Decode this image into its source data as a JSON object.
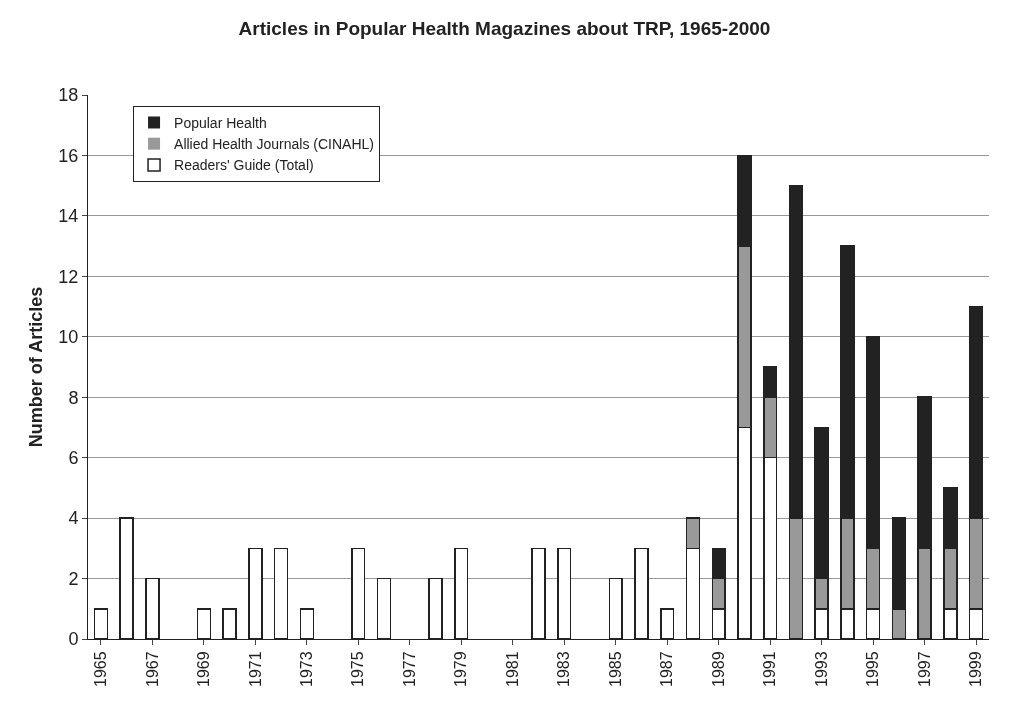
{
  "chart_data": {
    "type": "bar",
    "title": "Articles in Popular Health Magazines about TRP, 1965-2000",
    "ylabel": "Number of Articles",
    "categories": [
      "1965",
      null,
      "1967",
      null,
      "1969",
      null,
      "1971",
      null,
      "1973",
      null,
      "1975",
      null,
      "1977",
      null,
      "1979",
      null,
      "1981",
      null,
      "1983",
      null,
      "1985",
      null,
      "1987",
      null,
      "1989",
      null,
      "1991",
      null,
      "1993",
      null,
      "1995",
      null,
      "1997",
      null,
      "1999"
    ],
    "stacked": true,
    "series": [
      {
        "name": "Readers' Guide (Total)",
        "color": "#ffffff",
        "values": [
          1,
          4,
          2,
          0,
          1,
          1,
          3,
          3,
          1,
          0,
          3,
          2,
          0,
          2,
          3,
          0,
          0,
          3,
          3,
          0,
          2,
          3,
          1,
          3,
          1,
          7,
          6,
          0,
          1,
          1,
          1,
          0,
          0,
          1,
          1
        ]
      },
      {
        "name": "Allied Health Journals (CINAHL)",
        "color": "#999999",
        "values": [
          0,
          0,
          0,
          0,
          0,
          0,
          0,
          0,
          0,
          0,
          0,
          0,
          0,
          0,
          0,
          0,
          0,
          0,
          0,
          0,
          0,
          0,
          0,
          1,
          1,
          6,
          2,
          4,
          1,
          3,
          2,
          1,
          3,
          2,
          3
        ]
      },
      {
        "name": "Popular Health",
        "color": "#222222",
        "values": [
          0,
          0,
          0,
          0,
          0,
          0,
          0,
          0,
          0,
          0,
          0,
          0,
          0,
          0,
          0,
          0,
          0,
          0,
          0,
          0,
          0,
          0,
          0,
          0,
          1,
          3,
          1,
          11,
          5,
          9,
          7,
          3,
          5,
          2,
          7
        ]
      }
    ],
    "ylim": [
      0,
      18
    ],
    "yticks": [
      0,
      2,
      4,
      6,
      8,
      10,
      12,
      14,
      16,
      18
    ],
    "grid": "y",
    "legend": "top left"
  }
}
